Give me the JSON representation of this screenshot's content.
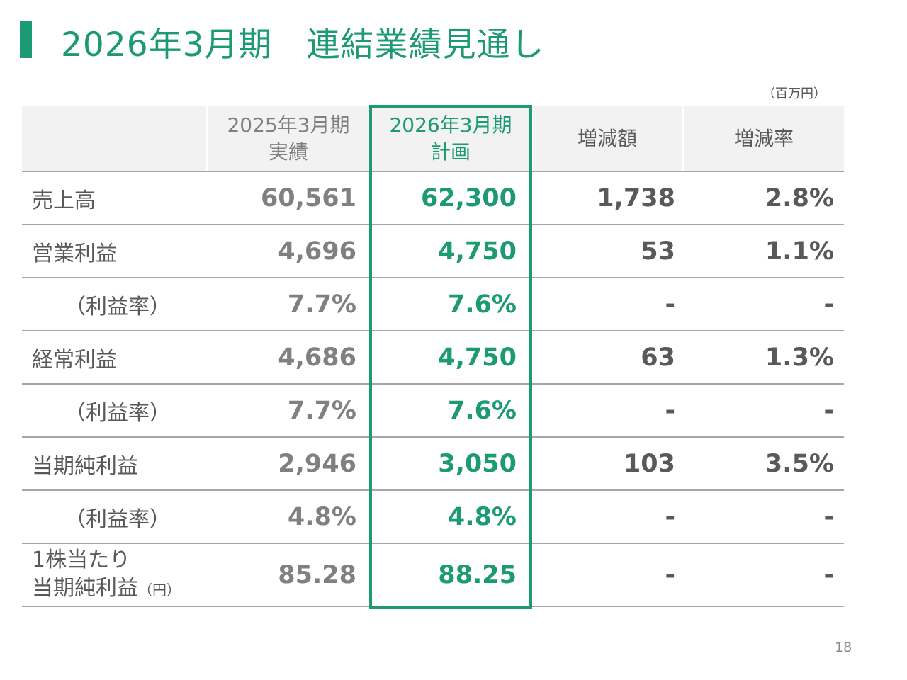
{
  "title": "2026年3月期　連結業績見通し",
  "unit": "（百万円）",
  "page_number": "18",
  "colors": {
    "accent": "#1b9a74",
    "text": "#595959",
    "muted": "#808080"
  },
  "headers": {
    "col1_line1": "2025年3月期",
    "col1_line2": "実績",
    "col2_line1": "2026年3月期",
    "col2_line2": "計画",
    "col3": "増減額",
    "col4": "増減率"
  },
  "rows": [
    {
      "label": "売上高",
      "actual": "60,561",
      "plan": "62,300",
      "diff": "1,738",
      "rate": "2.8%"
    },
    {
      "label": "営業利益",
      "actual": "4,696",
      "plan": "4,750",
      "diff": "53",
      "rate": "1.1%"
    },
    {
      "label": "（利益率）",
      "actual": "7.7%",
      "plan": "7.6%",
      "diff": "-",
      "rate": "-"
    },
    {
      "label": "経常利益",
      "actual": "4,686",
      "plan": "4,750",
      "diff": "63",
      "rate": "1.3%"
    },
    {
      "label": "（利益率）",
      "actual": "7.7%",
      "plan": "7.6%",
      "diff": "-",
      "rate": "-"
    },
    {
      "label": "当期純利益",
      "actual": "2,946",
      "plan": "3,050",
      "diff": "103",
      "rate": "3.5%"
    },
    {
      "label": "（利益率）",
      "actual": "4.8%",
      "plan": "4.8%",
      "diff": "-",
      "rate": "-"
    },
    {
      "label_line1": "1株当たり",
      "label_line2": "当期純利益",
      "label_unit": "（円）",
      "actual": "85.28",
      "plan": "88.25",
      "diff": "-",
      "rate": "-"
    }
  ]
}
